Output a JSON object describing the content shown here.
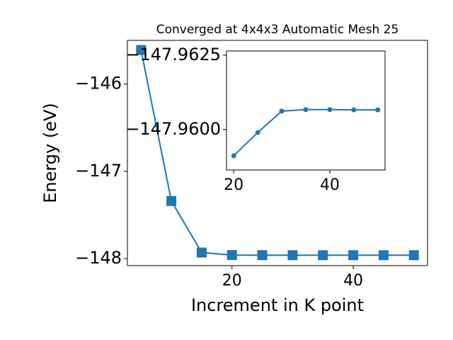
{
  "chart_data": [
    {
      "type": "line",
      "title": "Converged at 4x4x3 Automatic Mesh 25",
      "x_label": "Increment in K point",
      "y_label": "Energy (eV)",
      "x": [
        5,
        10,
        15,
        20,
        25,
        30,
        35,
        40,
        45,
        50
      ],
      "series": [
        {
          "color": "#1f77b4",
          "marker": "square",
          "values": [
            -145.61,
            -147.34,
            -147.93,
            -147.95912,
            -147.9599,
            -147.96062,
            -147.96067,
            -147.96067,
            -147.96066,
            -147.96066
          ]
        }
      ],
      "xlim": [
        2.75,
        52.25
      ],
      "xticks": [
        20,
        40
      ],
      "ylim": [
        -148.08,
        -145.5
      ],
      "yticks": [
        {
          "value": -148,
          "label": "−148"
        },
        {
          "value": -147,
          "label": "−147"
        },
        {
          "value": -146,
          "label": "−146"
        }
      ]
    },
    {
      "type": "line",
      "x": [
        20,
        25,
        30,
        35,
        40,
        45,
        50
      ],
      "series": [
        {
          "color": "#1f77b4",
          "marker": "circle",
          "values": [
            -147.95912,
            -147.9599,
            -147.96062,
            -147.96067,
            -147.96067,
            -147.96066,
            -147.96066
          ]
        }
      ],
      "xlim": [
        18.5,
        51.5
      ],
      "xticks": [
        20,
        40
      ],
      "ylim": [
        -147.95864,
        -147.96264
      ],
      "yticks": [
        {
          "value": -147.96,
          "label": "−147.9600"
        },
        {
          "value": -147.9625,
          "label": "−147.9625"
        }
      ]
    }
  ]
}
